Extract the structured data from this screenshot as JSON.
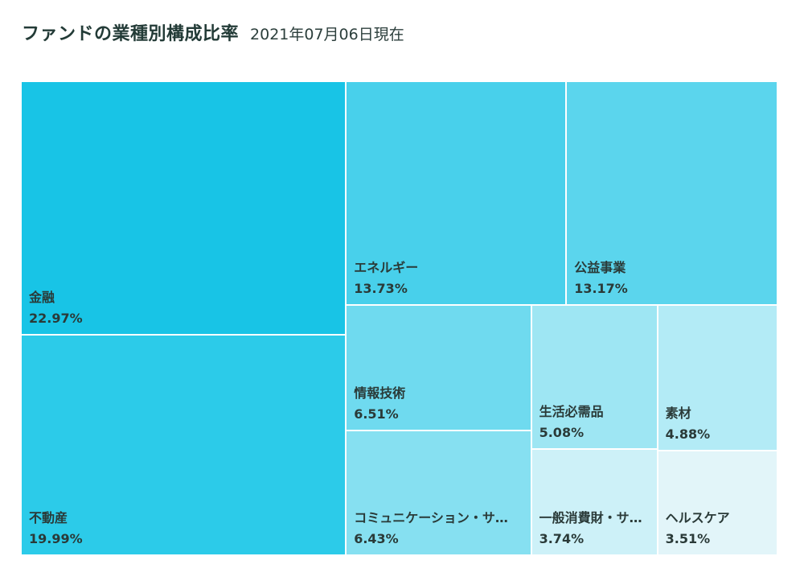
{
  "header": {
    "title": "ファンドの業種別構成比率",
    "subtitle": "2021年07月06日現在"
  },
  "chart_data": {
    "type": "treemap",
    "title": "ファンドの業種別構成比率",
    "subtitle": "2021年07月06日現在",
    "unit": "%",
    "items": [
      {
        "name": "金融",
        "value": 22.97,
        "label": "22.97%",
        "color": "#18c4e6"
      },
      {
        "name": "不動産",
        "value": 19.99,
        "label": "19.99%",
        "color": "#2ccbe9"
      },
      {
        "name": "エネルギー",
        "value": 13.73,
        "label": "13.73%",
        "color": "#48d0eb"
      },
      {
        "name": "公益事業",
        "value": 13.17,
        "label": "13.17%",
        "color": "#5bd5ed"
      },
      {
        "name": "情報技術",
        "value": 6.51,
        "label": "6.51%",
        "color": "#6fdaef"
      },
      {
        "name": "コミュニケーション・サ…",
        "value": 6.43,
        "label": "6.43%",
        "color": "#86e0f1"
      },
      {
        "name": "生活必需品",
        "value": 5.08,
        "label": "5.08%",
        "color": "#9ee6f3"
      },
      {
        "name": "素材",
        "value": 4.88,
        "label": "4.88%",
        "color": "#b3ebf6"
      },
      {
        "name": "一般消費財・サ…",
        "value": 3.74,
        "label": "3.74%",
        "color": "#cdf1f8"
      },
      {
        "name": "ヘルスケア",
        "value": 3.51,
        "label": "3.51%",
        "color": "#e2f5f9"
      }
    ]
  }
}
